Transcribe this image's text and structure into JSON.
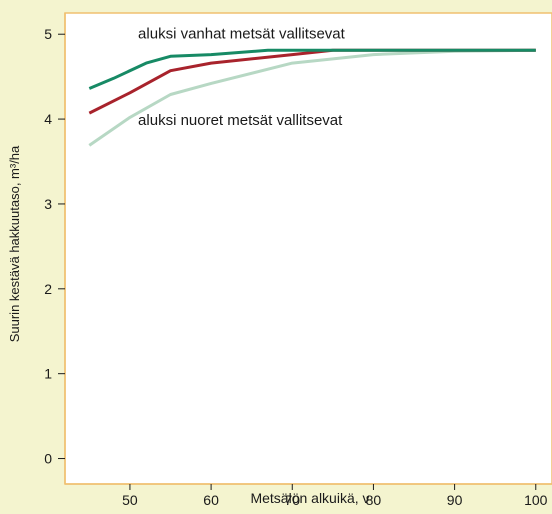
{
  "chart_data": {
    "type": "line",
    "xlabel": "Metsälön alkuikä, v",
    "ylabel": "Suurin kestävä hakkuutaso, m³/ha",
    "xlim": [
      42,
      102
    ],
    "ylim": [
      -0.3,
      5.25
    ],
    "xticks": [
      50,
      60,
      70,
      80,
      90,
      100
    ],
    "yticks": [
      0,
      1,
      2,
      3,
      4,
      5
    ],
    "grid": false,
    "background": "#f4f4cf",
    "frame_color": "#f0c070",
    "annotations": [
      {
        "text": "aluksi vanhat metsät vallitsevat",
        "x": 51,
        "y": 4.95
      },
      {
        "text": "aluksi nuoret metsät vallitsevat",
        "x": 51,
        "y": 3.93
      }
    ],
    "series": [
      {
        "color": "#178a65",
        "x": [
          45,
          48,
          52,
          55,
          60,
          67,
          75,
          80,
          100
        ],
        "y": [
          4.36,
          4.48,
          4.66,
          4.74,
          4.76,
          4.81,
          4.81,
          4.81,
          4.81
        ]
      },
      {
        "color": "#a8232c",
        "x": [
          45,
          50,
          55,
          60,
          70,
          75,
          80,
          100
        ],
        "y": [
          4.07,
          4.31,
          4.57,
          4.66,
          4.76,
          4.81,
          4.81,
          4.81
        ]
      },
      {
        "color": "#b7d8c4",
        "x": [
          45,
          50,
          55,
          60,
          70,
          80,
          90,
          100
        ],
        "y": [
          3.69,
          4.02,
          4.29,
          4.42,
          4.66,
          4.76,
          4.8,
          4.81
        ]
      }
    ]
  }
}
